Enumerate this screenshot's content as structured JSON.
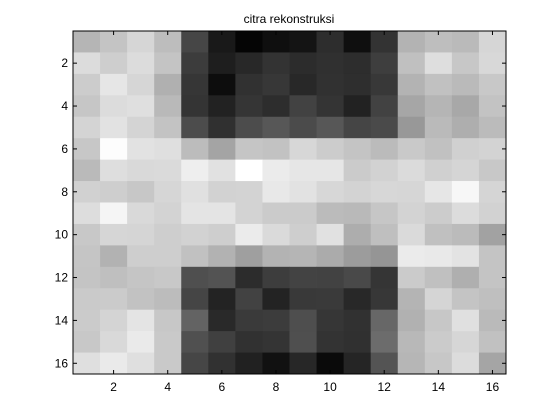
{
  "chart_data": {
    "type": "heatmap",
    "title": "citra rekonstruksi",
    "xlabel": "",
    "ylabel": "",
    "xlim": [
      0.5,
      16.5
    ],
    "ylim": [
      0.5,
      16.5
    ],
    "y_reversed": true,
    "grid": false,
    "colormap": "gray",
    "xticks": [
      2,
      4,
      6,
      8,
      10,
      12,
      14,
      16
    ],
    "yticks": [
      2,
      4,
      6,
      8,
      10,
      12,
      14,
      16
    ],
    "xtick_labels": [
      "2",
      "4",
      "6",
      "8",
      "10",
      "12",
      "14",
      "16"
    ],
    "ytick_labels": [
      "2",
      "4",
      "6",
      "8",
      "10",
      "12",
      "14",
      "16"
    ],
    "values": [
      [
        181,
        196,
        214,
        189,
        70,
        25,
        5,
        15,
        20,
        45,
        15,
        51,
        179,
        190,
        186,
        214
      ],
      [
        220,
        206,
        220,
        196,
        60,
        30,
        40,
        51,
        44,
        48,
        45,
        62,
        192,
        222,
        199,
        216
      ],
      [
        204,
        230,
        214,
        176,
        54,
        13,
        49,
        55,
        40,
        49,
        46,
        56,
        179,
        193,
        186,
        200
      ],
      [
        198,
        220,
        223,
        185,
        52,
        34,
        53,
        45,
        66,
        52,
        34,
        66,
        166,
        181,
        168,
        195
      ],
      [
        212,
        226,
        212,
        195,
        76,
        48,
        76,
        87,
        75,
        87,
        69,
        74,
        152,
        186,
        174,
        187
      ],
      [
        199,
        253,
        226,
        223,
        188,
        164,
        197,
        194,
        215,
        204,
        196,
        187,
        201,
        193,
        208,
        211
      ],
      [
        186,
        222,
        217,
        218,
        238,
        225,
        255,
        235,
        230,
        230,
        203,
        210,
        219,
        208,
        213,
        200
      ],
      [
        209,
        206,
        199,
        214,
        224,
        210,
        211,
        232,
        226,
        215,
        211,
        215,
        214,
        230,
        247,
        213
      ],
      [
        221,
        245,
        217,
        211,
        228,
        228,
        211,
        203,
        203,
        187,
        185,
        198,
        211,
        204,
        220,
        210
      ],
      [
        200,
        214,
        213,
        206,
        210,
        206,
        235,
        218,
        206,
        225,
        173,
        191,
        218,
        192,
        187,
        162
      ],
      [
        197,
        178,
        206,
        206,
        193,
        178,
        159,
        179,
        181,
        171,
        156,
        149,
        235,
        233,
        227,
        196
      ],
      [
        196,
        191,
        197,
        200,
        79,
        83,
        44,
        61,
        67,
        66,
        73,
        53,
        203,
        192,
        175,
        196
      ],
      [
        202,
        203,
        194,
        188,
        69,
        35,
        66,
        35,
        57,
        58,
        40,
        55,
        180,
        213,
        196,
        191
      ],
      [
        203,
        212,
        228,
        199,
        99,
        41,
        58,
        60,
        78,
        54,
        49,
        103,
        177,
        199,
        224,
        186
      ],
      [
        200,
        217,
        234,
        201,
        80,
        64,
        49,
        52,
        79,
        51,
        48,
        108,
        184,
        203,
        214,
        193
      ],
      [
        223,
        234,
        223,
        201,
        70,
        49,
        33,
        17,
        39,
        10,
        37,
        84,
        182,
        199,
        220,
        165
      ]
    ]
  }
}
